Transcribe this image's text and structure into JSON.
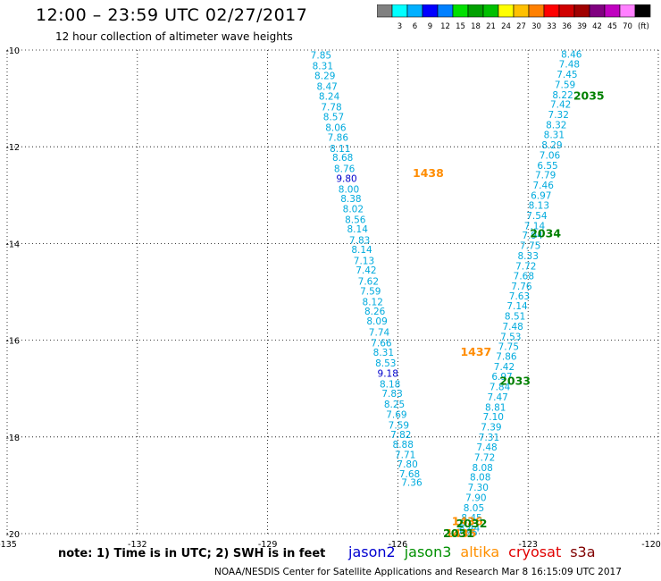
{
  "header": {
    "title": "12:00 – 23:59 UTC 02/27/2017",
    "subtitle": "12 hour collection of altimeter wave heights"
  },
  "legend": {
    "colors": [
      "#808080",
      "#00ffff",
      "#00b0ff",
      "#0000ff",
      "#0080ff",
      "#00e000",
      "#00a000",
      "#00c000",
      "#ffff00",
      "#ffc000",
      "#ff8000",
      "#ff0000",
      "#d00000",
      "#a00000",
      "#800080",
      "#c000c0",
      "#ff80ff",
      "#000000"
    ],
    "labels": [
      "3",
      "6",
      "9",
      "12",
      "15",
      "18",
      "21",
      "24",
      "27",
      "30",
      "33",
      "36",
      "39",
      "42",
      "45",
      "70"
    ],
    "unit": "(ft)"
  },
  "axes": {
    "lon_range": [
      -135,
      -120
    ],
    "lat_range": [
      -20,
      -10
    ],
    "lon_ticks": [
      "-135",
      "-132",
      "-129",
      "-126",
      "-123",
      "-120"
    ],
    "lat_ticks": [
      "-10",
      "-12",
      "-14",
      "-16",
      "-18",
      "-20"
    ]
  },
  "tracks": {
    "west": [
      {
        "lon": -127.77,
        "lat": -10.1,
        "v": "7.85"
      },
      {
        "lon": -127.73,
        "lat": -10.32,
        "v": "8.31"
      },
      {
        "lon": -127.68,
        "lat": -10.53,
        "v": "8.29"
      },
      {
        "lon": -127.63,
        "lat": -10.75,
        "v": "8.47"
      },
      {
        "lon": -127.58,
        "lat": -10.95,
        "v": "8.24"
      },
      {
        "lon": -127.53,
        "lat": -11.17,
        "v": "7.78"
      },
      {
        "lon": -127.48,
        "lat": -11.38,
        "v": "8.57"
      },
      {
        "lon": -127.43,
        "lat": -11.6,
        "v": "8.06"
      },
      {
        "lon": -127.38,
        "lat": -11.8,
        "v": "7.86"
      },
      {
        "lon": -127.33,
        "lat": -12.03,
        "v": "8.11"
      },
      {
        "lon": -127.27,
        "lat": -12.22,
        "v": "8.68"
      },
      {
        "lon": -127.23,
        "lat": -12.45,
        "v": "8.76"
      },
      {
        "lon": -127.18,
        "lat": -12.65,
        "v": "9.80"
      },
      {
        "lon": -127.13,
        "lat": -12.87,
        "v": "8.00"
      },
      {
        "lon": -127.08,
        "lat": -13.07,
        "v": "8.38"
      },
      {
        "lon": -127.03,
        "lat": -13.28,
        "v": "8.02"
      },
      {
        "lon": -126.98,
        "lat": -13.5,
        "v": "8.56"
      },
      {
        "lon": -126.93,
        "lat": -13.7,
        "v": "8.14"
      },
      {
        "lon": -126.88,
        "lat": -13.93,
        "v": "7.83"
      },
      {
        "lon": -126.83,
        "lat": -14.12,
        "v": "8.14"
      },
      {
        "lon": -126.78,
        "lat": -14.35,
        "v": "7.13"
      },
      {
        "lon": -126.73,
        "lat": -14.55,
        "v": "7.42"
      },
      {
        "lon": -126.68,
        "lat": -14.78,
        "v": "7.62"
      },
      {
        "lon": -126.63,
        "lat": -14.98,
        "v": "7.59"
      },
      {
        "lon": -126.58,
        "lat": -15.2,
        "v": "8.12"
      },
      {
        "lon": -126.53,
        "lat": -15.4,
        "v": "8.26"
      },
      {
        "lon": -126.48,
        "lat": -15.6,
        "v": "8.09"
      },
      {
        "lon": -126.43,
        "lat": -15.83,
        "v": "7.74"
      },
      {
        "lon": -126.38,
        "lat": -16.05,
        "v": "7.66"
      },
      {
        "lon": -126.33,
        "lat": -16.25,
        "v": "8.31"
      },
      {
        "lon": -126.28,
        "lat": -16.47,
        "v": "8.53"
      },
      {
        "lon": -126.23,
        "lat": -16.68,
        "v": "9.18"
      },
      {
        "lon": -126.18,
        "lat": -16.9,
        "v": "8.18"
      },
      {
        "lon": -126.13,
        "lat": -17.1,
        "v": "7.83"
      },
      {
        "lon": -126.08,
        "lat": -17.32,
        "v": "8.25"
      },
      {
        "lon": -126.03,
        "lat": -17.53,
        "v": "7.69"
      },
      {
        "lon": -125.98,
        "lat": -17.75,
        "v": "7.59"
      },
      {
        "lon": -125.93,
        "lat": -17.95,
        "v": "7.82"
      },
      {
        "lon": -125.88,
        "lat": -18.15,
        "v": "8.88"
      },
      {
        "lon": -125.83,
        "lat": -18.36,
        "v": "7.71"
      },
      {
        "lon": -125.78,
        "lat": -18.56,
        "v": "7.80"
      },
      {
        "lon": -125.73,
        "lat": -18.76,
        "v": "7.68"
      },
      {
        "lon": -125.68,
        "lat": -18.94,
        "v": "7.36"
      }
    ],
    "east": [
      {
        "lon": -122.0,
        "lat": -10.08,
        "v": "8.46"
      },
      {
        "lon": -122.05,
        "lat": -10.29,
        "v": "7.48"
      },
      {
        "lon": -122.1,
        "lat": -10.5,
        "v": "7.45"
      },
      {
        "lon": -122.15,
        "lat": -10.71,
        "v": "7.59"
      },
      {
        "lon": -122.2,
        "lat": -10.92,
        "v": "8.22"
      },
      {
        "lon": -122.25,
        "lat": -11.12,
        "v": "7.42"
      },
      {
        "lon": -122.3,
        "lat": -11.33,
        "v": "7.32"
      },
      {
        "lon": -122.35,
        "lat": -11.54,
        "v": "8.32"
      },
      {
        "lon": -122.4,
        "lat": -11.75,
        "v": "8.31"
      },
      {
        "lon": -122.45,
        "lat": -11.96,
        "v": "8.29"
      },
      {
        "lon": -122.5,
        "lat": -12.17,
        "v": "7.06"
      },
      {
        "lon": -122.55,
        "lat": -12.38,
        "v": "6.55"
      },
      {
        "lon": -122.6,
        "lat": -12.58,
        "v": "7.79"
      },
      {
        "lon": -122.65,
        "lat": -12.79,
        "v": "7.46"
      },
      {
        "lon": -122.7,
        "lat": -13.0,
        "v": "6.97"
      },
      {
        "lon": -122.75,
        "lat": -13.21,
        "v": "8.13"
      },
      {
        "lon": -122.8,
        "lat": -13.42,
        "v": "7.54"
      },
      {
        "lon": -122.85,
        "lat": -13.63,
        "v": "7.14"
      },
      {
        "lon": -122.9,
        "lat": -13.83,
        "v": "7.94"
      },
      {
        "lon": -122.95,
        "lat": -14.04,
        "v": "7.75"
      },
      {
        "lon": -123.0,
        "lat": -14.25,
        "v": "8.33"
      },
      {
        "lon": -123.05,
        "lat": -14.46,
        "v": "7.72"
      },
      {
        "lon": -123.1,
        "lat": -14.67,
        "v": "7.68"
      },
      {
        "lon": -123.15,
        "lat": -14.88,
        "v": "7.76"
      },
      {
        "lon": -123.2,
        "lat": -15.08,
        "v": "7.63"
      },
      {
        "lon": -123.25,
        "lat": -15.29,
        "v": "7.14"
      },
      {
        "lon": -123.3,
        "lat": -15.5,
        "v": "8.51"
      },
      {
        "lon": -123.35,
        "lat": -15.71,
        "v": "7.48"
      },
      {
        "lon": -123.4,
        "lat": -15.92,
        "v": "7.53"
      },
      {
        "lon": -123.45,
        "lat": -16.13,
        "v": "7.75"
      },
      {
        "lon": -123.5,
        "lat": -16.33,
        "v": "7.86"
      },
      {
        "lon": -123.55,
        "lat": -16.54,
        "v": "7.42"
      },
      {
        "lon": -123.6,
        "lat": -16.75,
        "v": "6.97"
      },
      {
        "lon": -123.65,
        "lat": -16.96,
        "v": "7.84"
      },
      {
        "lon": -123.7,
        "lat": -17.17,
        "v": "7.47"
      },
      {
        "lon": -123.75,
        "lat": -17.38,
        "v": "8.81"
      },
      {
        "lon": -123.8,
        "lat": -17.58,
        "v": "7.10"
      },
      {
        "lon": -123.85,
        "lat": -17.79,
        "v": "7.39"
      },
      {
        "lon": -123.9,
        "lat": -18.0,
        "v": "7.31"
      },
      {
        "lon": -123.95,
        "lat": -18.21,
        "v": "7.48"
      },
      {
        "lon": -124.0,
        "lat": -18.42,
        "v": "7.72"
      },
      {
        "lon": -124.05,
        "lat": -18.63,
        "v": "8.08"
      },
      {
        "lon": -124.1,
        "lat": -18.83,
        "v": "8.08"
      },
      {
        "lon": -124.15,
        "lat": -19.04,
        "v": "7.30"
      },
      {
        "lon": -124.2,
        "lat": -19.25,
        "v": "7.90"
      },
      {
        "lon": -124.25,
        "lat": -19.46,
        "v": "8.05"
      },
      {
        "lon": -124.3,
        "lat": -19.67,
        "v": "8.45"
      },
      {
        "lon": -124.35,
        "lat": -19.88,
        "v": "8.44"
      },
      {
        "lon": -124.4,
        "lat": -19.97,
        "v": "7.85"
      }
    ]
  },
  "time_labels": [
    {
      "text": "1438",
      "lon": -125.3,
      "lat": -12.55,
      "color": "#ff8c00"
    },
    {
      "text": "1437",
      "lon": -124.2,
      "lat": -16.25,
      "color": "#ff8c00"
    },
    {
      "text": "1436",
      "lon": -124.4,
      "lat": -19.75,
      "color": "#ff8c00"
    },
    {
      "text": "1435",
      "lon": -124.55,
      "lat": -20.0,
      "color": "#ff8c00"
    },
    {
      "text": "2035",
      "lon": -121.6,
      "lat": -10.95,
      "color": "#008000"
    },
    {
      "text": "2034",
      "lon": -122.6,
      "lat": -13.8,
      "color": "#008000"
    },
    {
      "text": "2033",
      "lon": -123.3,
      "lat": -16.85,
      "color": "#008000"
    },
    {
      "text": "2032",
      "lon": -124.3,
      "lat": -19.8,
      "color": "#008000"
    },
    {
      "text": "2031",
      "lon": -124.6,
      "lat": -20.0,
      "color": "#008000"
    }
  ],
  "footer": {
    "note": "note: 1) Time is in UTC; 2) SWH is in feet",
    "credit": "NOAA/NESDIS Center for Satellite Applications and Research     Mar  8 16:15:09 UTC 2017",
    "satellites": [
      {
        "name": "jason2",
        "color": "#0000d0"
      },
      {
        "name": "jason3",
        "color": "#009000"
      },
      {
        "name": "altika",
        "color": "#ff9000"
      },
      {
        "name": "cryosat",
        "color": "#e00000"
      },
      {
        "name": "s3a",
        "color": "#800000"
      }
    ]
  },
  "colors": {
    "track_value": "#00aadd",
    "high_value": "#0000cc"
  }
}
